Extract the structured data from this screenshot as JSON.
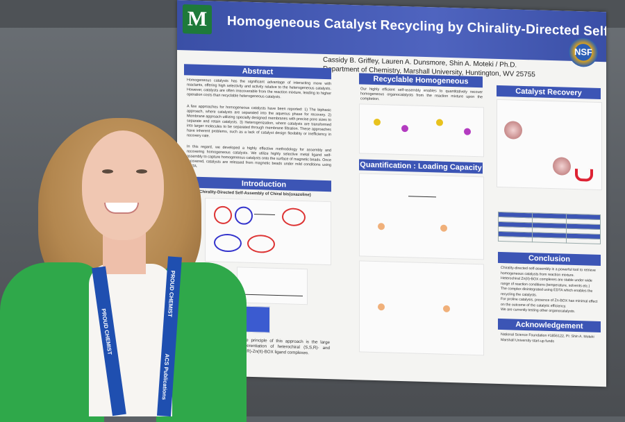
{
  "poster": {
    "logo_letter": "M",
    "title": "Homogeneous Catalyst Recycling by Chirality-Directed Self-Assembly",
    "nsf": "NSF",
    "authors": "Cassidy B. Griffey, Lauren A. Dunsmore, Shin A. Moteki / Ph.D.",
    "department": "Department of Chemistry, Marshall University, Huntington, WV 25755",
    "sections": {
      "abstract": "Abstract",
      "introduction": "Introduction",
      "recyclable": "Recyclable Homogeneous Catalysts",
      "quantification": "Quantification : Loading Capacity",
      "recovery": "Catalyst Recovery",
      "conclusion": "Conclusion",
      "acknowledgement": "Acknowledgement"
    },
    "intro_subtitle": "Chirality-Directed Self-Assembly of Chiral bis(oxazoline)",
    "abstract_text": "Homogeneous catalysts has the significant advantage of interacting more with reactants, offering high selectivity and activity relative to the heterogeneous catalysts. However, catalysts are often irrecoverable from the reaction mixture, leading to higher operation costs than recyclable heterogeneous catalysts.",
    "abstract_text2": "A few approaches for homogeneous catalysts have been reported: 1) The biphasic approach, where catalysts are separated into the aqueous phase for recovery. 2) Membrane approach utilizing specially designed membranes with precise pore sizes to separate and retain catalysts. 3) Heterogenization, where catalysts are transformed into larger molecules to be separated through membrane filtration. These approaches have inherent problems, such as a lack of catalyst design flexibility or inefficiency in recovery rate.",
    "abstract_text3": "In this regard, we developed a highly effective methodology for assembly and recovering homogeneous catalysts. We utilize highly selective metal ligand self-assembly to capture homogeneous catalysts onto the surface of magnetic beads. Once recovered, catalysts are released from magnetic beads under mild conditions using EDTA.",
    "intro_text": "The principle of this approach is the large differentiation of heterochiral (S,S,R)- and (R,R)-Zn(II)-BOX ligand complexes.",
    "recyclable_text": "Our highly efficient self-assembly enables to quantitatively recover homogeneous organocatalysts from the reaction mixture upon the completion.",
    "conclusion_bullets": [
      "Chirality-directed self-assembly is a powerful tool to retrieve homogeneous catalysts from reaction mixture.",
      "Heterochiral Zn(II)-BOX complexes are stable under wide range of reaction conditions (temperature, solvents etc.)",
      "The complex disintegrated using EDTA which enables the recycling the catalysts.",
      "For proline catalysis, presence of Zn-BOX has minimal effect on the outcome of the catalytic efficiency.",
      "We are currently testing other organocatalysts."
    ],
    "ack_bullets": [
      "National Science Foundation #1856122, PI: Shin A. Moteki",
      "Marshall University start-up funds"
    ]
  },
  "lanyard_text": [
    "ACS",
    "PROUD CHEMIST",
    "ACS Publications",
    "PROUD CHEMIST"
  ]
}
